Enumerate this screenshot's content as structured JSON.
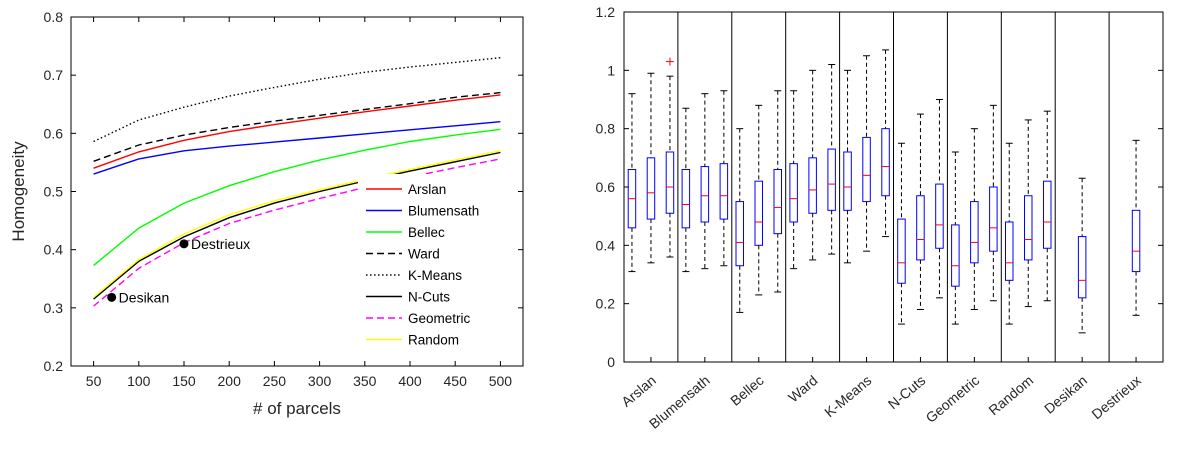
{
  "chart_data": [
    {
      "type": "line",
      "xlabel": "# of parcels",
      "ylabel": "Homogeneity",
      "xlim": [
        25,
        525
      ],
      "ylim": [
        0.2,
        0.8
      ],
      "xticks": [
        50,
        100,
        150,
        200,
        250,
        300,
        350,
        400,
        450,
        500
      ],
      "yticks": [
        0.2,
        0.3,
        0.4,
        0.5,
        0.6,
        0.7,
        0.8
      ],
      "x": [
        50,
        100,
        150,
        200,
        250,
        300,
        350,
        400,
        450,
        500
      ],
      "legend_position": "bottom-right",
      "series": [
        {
          "name": "Arslan",
          "color": "#ff0000",
          "dash": "solid",
          "values": [
            0.54,
            0.568,
            0.588,
            0.603,
            0.615,
            0.626,
            0.637,
            0.647,
            0.657,
            0.666
          ]
        },
        {
          "name": "Blumensath",
          "color": "#0000ff",
          "dash": "solid",
          "values": [
            0.53,
            0.556,
            0.57,
            0.578,
            0.585,
            0.592,
            0.599,
            0.606,
            0.613,
            0.62
          ]
        },
        {
          "name": "Bellec",
          "color": "#00ff00",
          "dash": "solid",
          "values": [
            0.373,
            0.437,
            0.48,
            0.51,
            0.534,
            0.554,
            0.571,
            0.586,
            0.597,
            0.607
          ]
        },
        {
          "name": "Ward",
          "color": "#000000",
          "dash": "dashed",
          "values": [
            0.552,
            0.58,
            0.597,
            0.61,
            0.621,
            0.631,
            0.641,
            0.651,
            0.662,
            0.67
          ]
        },
        {
          "name": "K-Means",
          "color": "#000000",
          "dash": "dotted",
          "values": [
            0.586,
            0.623,
            0.645,
            0.664,
            0.679,
            0.693,
            0.705,
            0.714,
            0.722,
            0.73
          ]
        },
        {
          "name": "N-Cuts",
          "color": "#000000",
          "dash": "solid",
          "values": [
            0.315,
            0.38,
            0.422,
            0.455,
            0.48,
            0.5,
            0.518,
            0.535,
            0.551,
            0.567
          ]
        },
        {
          "name": "Geometric",
          "color": "#ff00ff",
          "dash": "dashed",
          "values": [
            0.303,
            0.368,
            0.412,
            0.445,
            0.468,
            0.488,
            0.507,
            0.525,
            0.541,
            0.556
          ]
        },
        {
          "name": "Random",
          "color": "#ffff00",
          "dash": "solid",
          "values": [
            0.318,
            0.383,
            0.427,
            0.46,
            0.484,
            0.503,
            0.521,
            0.538,
            0.554,
            0.57
          ]
        }
      ],
      "annotations": [
        {
          "label": "Desikan",
          "x": 70,
          "y": 0.318
        },
        {
          "label": "Destrieux",
          "x": 150,
          "y": 0.41
        }
      ]
    },
    {
      "type": "box",
      "ylim": [
        0,
        1.2
      ],
      "yticks": [
        0,
        0.2,
        0.4,
        0.6,
        0.8,
        1,
        1.2
      ],
      "categories": [
        "Arslan",
        "Blumensath",
        "Bellec",
        "Ward",
        "K-Means",
        "N-Cuts",
        "Geometric",
        "Random",
        "Desikan",
        "Destrieux"
      ],
      "groups": [
        {
          "category": "Arslan",
          "boxes": [
            {
              "whisker_low": 0.31,
              "q1": 0.46,
              "median": 0.56,
              "q3": 0.66,
              "whisker_high": 0.92
            },
            {
              "whisker_low": 0.34,
              "q1": 0.49,
              "median": 0.58,
              "q3": 0.7,
              "whisker_high": 0.99
            },
            {
              "whisker_low": 0.36,
              "q1": 0.51,
              "median": 0.6,
              "q3": 0.72,
              "whisker_high": 0.98,
              "outliers": [
                1.03
              ]
            }
          ]
        },
        {
          "category": "Blumensath",
          "boxes": [
            {
              "whisker_low": 0.31,
              "q1": 0.46,
              "median": 0.54,
              "q3": 0.66,
              "whisker_high": 0.87
            },
            {
              "whisker_low": 0.32,
              "q1": 0.48,
              "median": 0.57,
              "q3": 0.67,
              "whisker_high": 0.92
            },
            {
              "whisker_low": 0.33,
              "q1": 0.49,
              "median": 0.57,
              "q3": 0.68,
              "whisker_high": 0.93
            }
          ]
        },
        {
          "category": "Bellec",
          "boxes": [
            {
              "whisker_low": 0.17,
              "q1": 0.33,
              "median": 0.41,
              "q3": 0.55,
              "whisker_high": 0.8
            },
            {
              "whisker_low": 0.23,
              "q1": 0.4,
              "median": 0.48,
              "q3": 0.62,
              "whisker_high": 0.88
            },
            {
              "whisker_low": 0.24,
              "q1": 0.44,
              "median": 0.53,
              "q3": 0.66,
              "whisker_high": 0.93
            }
          ]
        },
        {
          "category": "Ward",
          "boxes": [
            {
              "whisker_low": 0.32,
              "q1": 0.48,
              "median": 0.56,
              "q3": 0.68,
              "whisker_high": 0.93
            },
            {
              "whisker_low": 0.35,
              "q1": 0.51,
              "median": 0.59,
              "q3": 0.7,
              "whisker_high": 1.0
            },
            {
              "whisker_low": 0.37,
              "q1": 0.52,
              "median": 0.61,
              "q3": 0.73,
              "whisker_high": 1.02
            }
          ]
        },
        {
          "category": "K-Means",
          "boxes": [
            {
              "whisker_low": 0.34,
              "q1": 0.52,
              "median": 0.6,
              "q3": 0.72,
              "whisker_high": 1.0
            },
            {
              "whisker_low": 0.38,
              "q1": 0.55,
              "median": 0.64,
              "q3": 0.77,
              "whisker_high": 1.05
            },
            {
              "whisker_low": 0.43,
              "q1": 0.57,
              "median": 0.67,
              "q3": 0.8,
              "whisker_high": 1.07
            }
          ]
        },
        {
          "category": "N-Cuts",
          "boxes": [
            {
              "whisker_low": 0.13,
              "q1": 0.27,
              "median": 0.34,
              "q3": 0.49,
              "whisker_high": 0.75
            },
            {
              "whisker_low": 0.18,
              "q1": 0.35,
              "median": 0.42,
              "q3": 0.57,
              "whisker_high": 0.85
            },
            {
              "whisker_low": 0.22,
              "q1": 0.39,
              "median": 0.47,
              "q3": 0.61,
              "whisker_high": 0.9
            }
          ]
        },
        {
          "category": "Geometric",
          "boxes": [
            {
              "whisker_low": 0.13,
              "q1": 0.26,
              "median": 0.33,
              "q3": 0.47,
              "whisker_high": 0.72
            },
            {
              "whisker_low": 0.18,
              "q1": 0.34,
              "median": 0.41,
              "q3": 0.55,
              "whisker_high": 0.8
            },
            {
              "whisker_low": 0.21,
              "q1": 0.38,
              "median": 0.46,
              "q3": 0.6,
              "whisker_high": 0.88
            }
          ]
        },
        {
          "category": "Random",
          "boxes": [
            {
              "whisker_low": 0.13,
              "q1": 0.28,
              "median": 0.34,
              "q3": 0.48,
              "whisker_high": 0.75
            },
            {
              "whisker_low": 0.19,
              "q1": 0.35,
              "median": 0.42,
              "q3": 0.57,
              "whisker_high": 0.83
            },
            {
              "whisker_low": 0.21,
              "q1": 0.39,
              "median": 0.48,
              "q3": 0.62,
              "whisker_high": 0.86
            }
          ]
        },
        {
          "category": "Desikan",
          "boxes": [
            {
              "whisker_low": 0.1,
              "q1": 0.22,
              "median": 0.28,
              "q3": 0.43,
              "whisker_high": 0.63
            }
          ]
        },
        {
          "category": "Destrieux",
          "boxes": [
            {
              "whisker_low": 0.16,
              "q1": 0.31,
              "median": 0.38,
              "q3": 0.52,
              "whisker_high": 0.76
            }
          ]
        }
      ],
      "colors": {
        "box": "#0000ff",
        "median": "#ff0000",
        "whisker": "#000000",
        "outlier": "#ff0000"
      }
    }
  ]
}
